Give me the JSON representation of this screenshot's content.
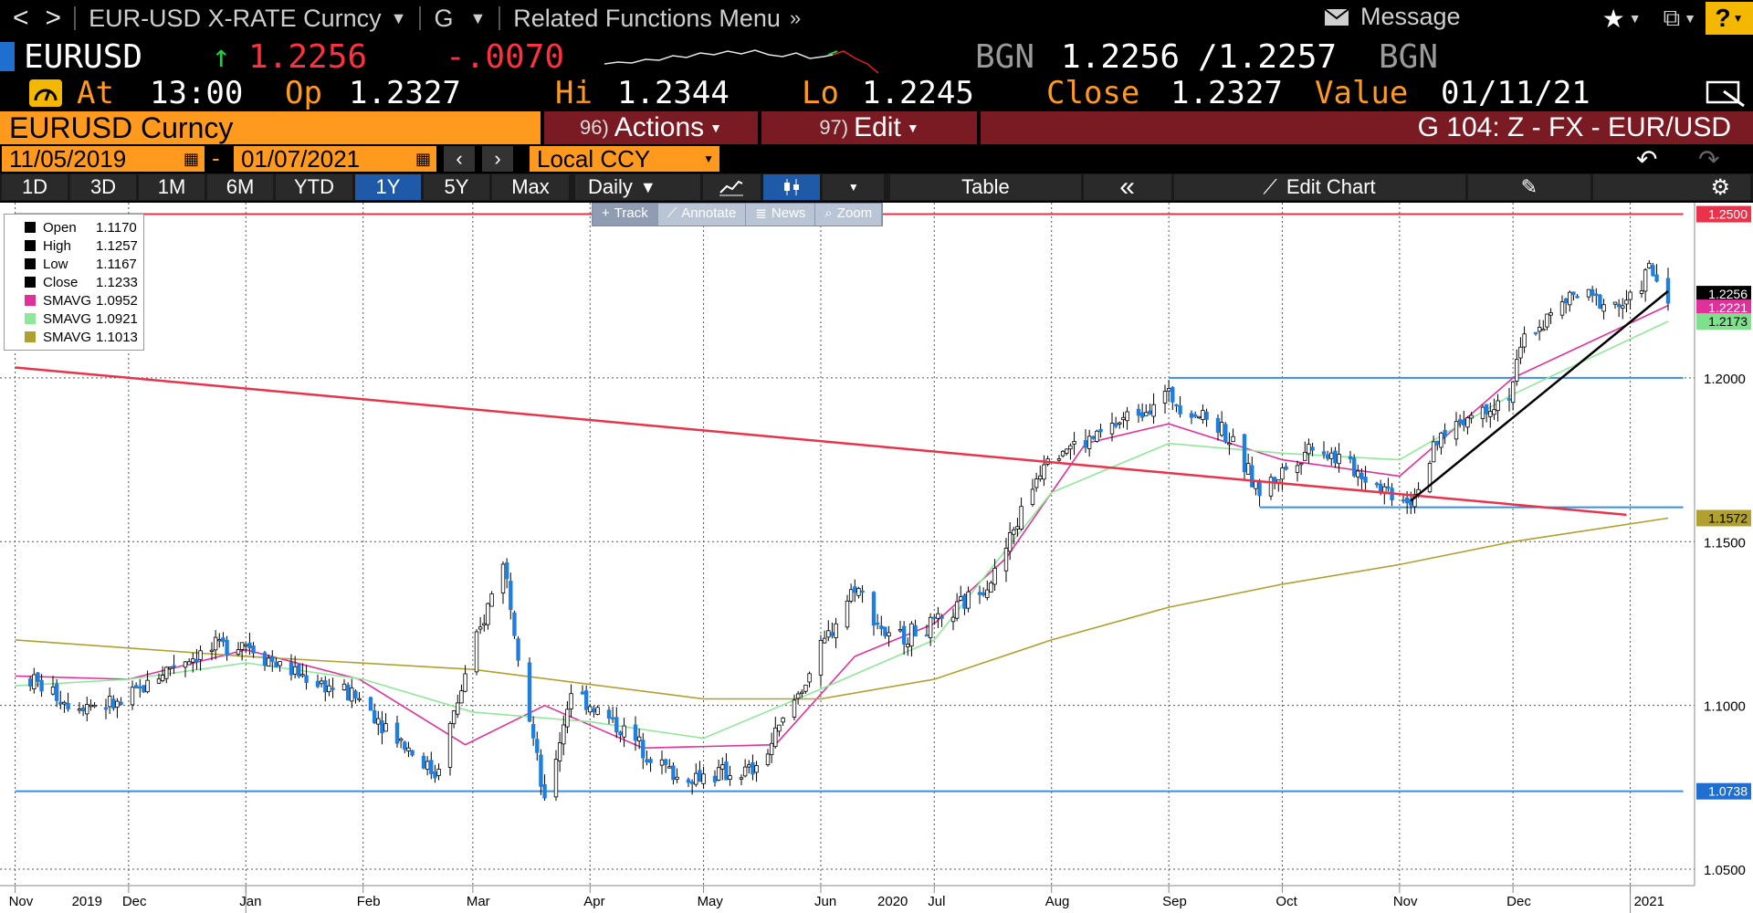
{
  "toolbar": {
    "back": "<",
    "forward": ">",
    "security": "EUR-USD X-RATE Curncy",
    "function": "G",
    "related": "Related Functions Menu",
    "message": "Message",
    "help": "?"
  },
  "quote": {
    "ticker": "EURUSD",
    "last": "1.2256",
    "change": "-.0070",
    "source1": "BGN",
    "bid": "1.2256",
    "ask": "1.2257",
    "source2": "BGN",
    "at_label": "At",
    "time": "13:00",
    "op_label": "Op",
    "open": "1.2327",
    "hi_label": "Hi",
    "high": "1.2344",
    "lo_label": "Lo",
    "low": "1.2245",
    "close_label": "Close",
    "close": "1.2327",
    "value_label": "Value",
    "value_date": "01/11/21"
  },
  "header": {
    "security": "EURUSD Curncy",
    "actions_num": "96)",
    "actions": "Actions",
    "edit_num": "97)",
    "edit": "Edit",
    "chart_id": "G 104: Z - FX - EUR/USD"
  },
  "range": {
    "start": "11/05/2019",
    "end": "01/07/2021",
    "currency": "Local CCY",
    "dash": "-"
  },
  "periods": [
    "1D",
    "3D",
    "1M",
    "6M",
    "YTD",
    "1Y",
    "5Y",
    "Max"
  ],
  "period_active": "1Y",
  "controls": {
    "frequency": "Daily",
    "table": "Table",
    "edit_chart": "Edit Chart",
    "collapse": "«"
  },
  "tools": [
    "Track",
    "Annotate",
    "News",
    "Zoom"
  ],
  "legend": [
    {
      "label": "Open",
      "value": "1.1170",
      "color": "#000000"
    },
    {
      "label": "High",
      "value": "1.1257",
      "color": "#000000"
    },
    {
      "label": "Low",
      "value": "1.1167",
      "color": "#000000"
    },
    {
      "label": "Close",
      "value": "1.1233",
      "color": "#000000"
    },
    {
      "label": "SMAVG",
      "value": "1.0952",
      "color": "#e0309a"
    },
    {
      "label": "SMAVG",
      "value": "1.0921",
      "color": "#8fe89a"
    },
    {
      "label": "SMAVG",
      "value": "1.1013",
      "color": "#b0a030"
    }
  ],
  "chart_data": {
    "type": "candlestick",
    "title": "",
    "x_months": [
      "Nov",
      "Dec",
      "Jan",
      "Feb",
      "Mar",
      "Apr",
      "May",
      "Jun",
      "Jul",
      "Aug",
      "Sep",
      "Oct",
      "Nov",
      "Dec"
    ],
    "x_years": [
      "2019",
      "2020",
      "2021"
    ],
    "y_ticks": [
      "1.2000",
      "1.1500",
      "1.1000",
      "1.0500"
    ],
    "ylim": [
      1.045,
      1.2535
    ],
    "price_tags": [
      {
        "value": 1.25,
        "label": "1.2500",
        "bg": "#e8334a",
        "fg": "#ffffff"
      },
      {
        "value": 1.2256,
        "label": "1.2256",
        "bg": "#000000",
        "fg": "#ffffff"
      },
      {
        "value": 1.2221,
        "label": "1.2221",
        "bg": "#e0309a",
        "fg": "#ffffff"
      },
      {
        "value": 1.2173,
        "label": "1.2173",
        "bg": "#7fe08c",
        "fg": "#000000"
      },
      {
        "value": 1.1572,
        "label": "1.1572",
        "bg": "#b0a030",
        "fg": "#000000"
      },
      {
        "value": 1.0738,
        "label": "1.0738",
        "bg": "#1f6fd0",
        "fg": "#ffffff"
      }
    ],
    "hlines": [
      {
        "value": 1.25,
        "color": "#e8334a",
        "from": "2019-11-01",
        "to": "2021-01-15"
      },
      {
        "value": 1.0738,
        "color": "#3a8fe0",
        "from": "2019-11-01",
        "to": "2021-01-15"
      },
      {
        "value": 1.2,
        "color": "#3a8fe0",
        "from": "2020-09-01",
        "to": "2021-01-15"
      },
      {
        "value": 1.1605,
        "color": "#3a8fe0",
        "from": "2020-09-25",
        "to": "2021-01-15"
      }
    ],
    "trendlines": [
      {
        "color": "#e8334a",
        "from": [
          "2019-11-01",
          1.2032
        ],
        "to": [
          "2020-12-31",
          1.1582
        ]
      },
      {
        "color": "#000000",
        "from": [
          "2020-11-04",
          1.1625
        ],
        "to": [
          "2021-01-11",
          1.2265
        ]
      }
    ],
    "price": [
      [
        "2019-11-05",
        1.108
      ],
      [
        "2019-11-15",
        1.101
      ],
      [
        "2019-11-29",
        1.1
      ],
      [
        "2019-12-13",
        1.113
      ],
      [
        "2019-12-31",
        1.12
      ],
      [
        "2020-01-10",
        1.112
      ],
      [
        "2020-01-31",
        1.102
      ],
      [
        "2020-02-20",
        1.079
      ],
      [
        "2020-03-09",
        1.145
      ],
      [
        "2020-03-20",
        1.069
      ],
      [
        "2020-03-27",
        1.105
      ],
      [
        "2020-04-10",
        1.092
      ],
      [
        "2020-04-24",
        1.078
      ],
      [
        "2020-05-15",
        1.08
      ],
      [
        "2020-05-29",
        1.11
      ],
      [
        "2020-06-10",
        1.137
      ],
      [
        "2020-06-19",
        1.12
      ],
      [
        "2020-07-03",
        1.125
      ],
      [
        "2020-07-17",
        1.14
      ],
      [
        "2020-07-31",
        1.178
      ],
      [
        "2020-08-10",
        1.18
      ],
      [
        "2020-08-31",
        1.195
      ],
      [
        "2020-09-15",
        1.185
      ],
      [
        "2020-09-25",
        1.165
      ],
      [
        "2020-10-09",
        1.18
      ],
      [
        "2020-10-30",
        1.165
      ],
      [
        "2020-11-04",
        1.163
      ],
      [
        "2020-11-13",
        1.184
      ],
      [
        "2020-11-30",
        1.195
      ],
      [
        "2020-12-04",
        1.212
      ],
      [
        "2020-12-17",
        1.225
      ],
      [
        "2020-12-31",
        1.222
      ],
      [
        "2021-01-06",
        1.233
      ],
      [
        "2021-01-11",
        1.2256
      ]
    ],
    "series": [
      {
        "name": "SMAVG",
        "color": "#e0309a",
        "points": [
          [
            "2019-11-01",
            1.109
          ],
          [
            "2019-12-01",
            1.108
          ],
          [
            "2020-01-01",
            1.117
          ],
          [
            "2020-01-31",
            1.108
          ],
          [
            "2020-02-28",
            1.088
          ],
          [
            "2020-03-20",
            1.1
          ],
          [
            "2020-04-15",
            1.087
          ],
          [
            "2020-05-20",
            1.088
          ],
          [
            "2020-06-10",
            1.115
          ],
          [
            "2020-07-01",
            1.125
          ],
          [
            "2020-07-20",
            1.145
          ],
          [
            "2020-08-10",
            1.18
          ],
          [
            "2020-09-01",
            1.186
          ],
          [
            "2020-10-01",
            1.175
          ],
          [
            "2020-11-01",
            1.17
          ],
          [
            "2020-12-01",
            1.2
          ],
          [
            "2021-01-11",
            1.2221
          ]
        ]
      },
      {
        "name": "SMAVG",
        "color": "#8fe89a",
        "points": [
          [
            "2019-11-01",
            1.106
          ],
          [
            "2019-12-01",
            1.108
          ],
          [
            "2020-01-01",
            1.113
          ],
          [
            "2020-02-01",
            1.108
          ],
          [
            "2020-03-01",
            1.098
          ],
          [
            "2020-04-01",
            1.095
          ],
          [
            "2020-05-01",
            1.09
          ],
          [
            "2020-06-01",
            1.105
          ],
          [
            "2020-07-01",
            1.12
          ],
          [
            "2020-08-01",
            1.165
          ],
          [
            "2020-09-01",
            1.18
          ],
          [
            "2020-10-01",
            1.177
          ],
          [
            "2020-11-01",
            1.175
          ],
          [
            "2020-12-01",
            1.195
          ],
          [
            "2021-01-11",
            1.2173
          ]
        ]
      },
      {
        "name": "SMAVG",
        "color": "#b0a030",
        "points": [
          [
            "2019-11-01",
            1.12
          ],
          [
            "2020-01-01",
            1.115
          ],
          [
            "2020-03-01",
            1.111
          ],
          [
            "2020-05-01",
            1.102
          ],
          [
            "2020-06-01",
            1.102
          ],
          [
            "2020-07-01",
            1.108
          ],
          [
            "2020-08-01",
            1.12
          ],
          [
            "2020-09-01",
            1.13
          ],
          [
            "2020-10-01",
            1.137
          ],
          [
            "2020-11-01",
            1.143
          ],
          [
            "2020-12-01",
            1.15
          ],
          [
            "2021-01-11",
            1.1572
          ]
        ]
      }
    ]
  }
}
